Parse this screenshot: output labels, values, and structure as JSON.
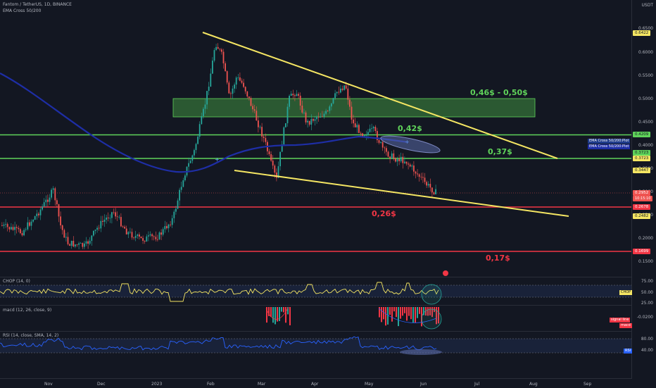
{
  "header": {
    "title": "Fantom / TetherUS, 1D, BINANCE",
    "indicator": "EMA Cross 50/200",
    "currency": "USDT"
  },
  "price_axis": [
    "0.6500",
    "0.6000",
    "0.5500",
    "0.5000",
    "0.4500",
    "0.4000",
    "0.3500",
    "0.3000",
    "0.2500",
    "0.2000",
    "0.1500"
  ],
  "price_badges": {
    "high": "0.6422",
    "line_042": "0.4209",
    "line_037": "0.3723",
    "low_trend": "0.3447",
    "last": "0.2952",
    "countdown": "10:15:10",
    "line_026": "0.2678",
    "lower": "0.2482",
    "line_017": "0.1699"
  },
  "ema_tags": [
    "EMA Cross 50/200:Plot",
    "EMA Cross 50/200:Plot"
  ],
  "annotations": {
    "zone": "0,46$ - 0,50$",
    "l042": "0,42$",
    "l037": "0,37$",
    "l026": "0,26$",
    "l017": "0,17$"
  },
  "panes": {
    "chop": {
      "label": "CHOP (14, 0)",
      "ticks": [
        "75.00",
        "50.00",
        "25.00"
      ],
      "tag": "CHOP"
    },
    "macd": {
      "label": "macd (12, 26, close, 9)",
      "ticks": [
        "-0.0200"
      ],
      "tags": [
        "signal line",
        "macd"
      ]
    },
    "rsi": {
      "label": "RSI (14, close, SMA, 14, 2)",
      "ticks": [
        "80.00",
        "40.00"
      ],
      "tag": "RSI"
    }
  },
  "x_axis": [
    "Nov",
    "Dec",
    "2023",
    "Feb",
    "Mar",
    "Apr",
    "May",
    "Jun",
    "Jul",
    "Aug",
    "Sep"
  ],
  "colors": {
    "background": "#131722",
    "up": "#26a69a",
    "down": "#ef5350",
    "trendline": "#f5e663",
    "support_green": "#5fd35a",
    "resistance_red": "#f23645",
    "ema": "#1e2ea6"
  }
}
